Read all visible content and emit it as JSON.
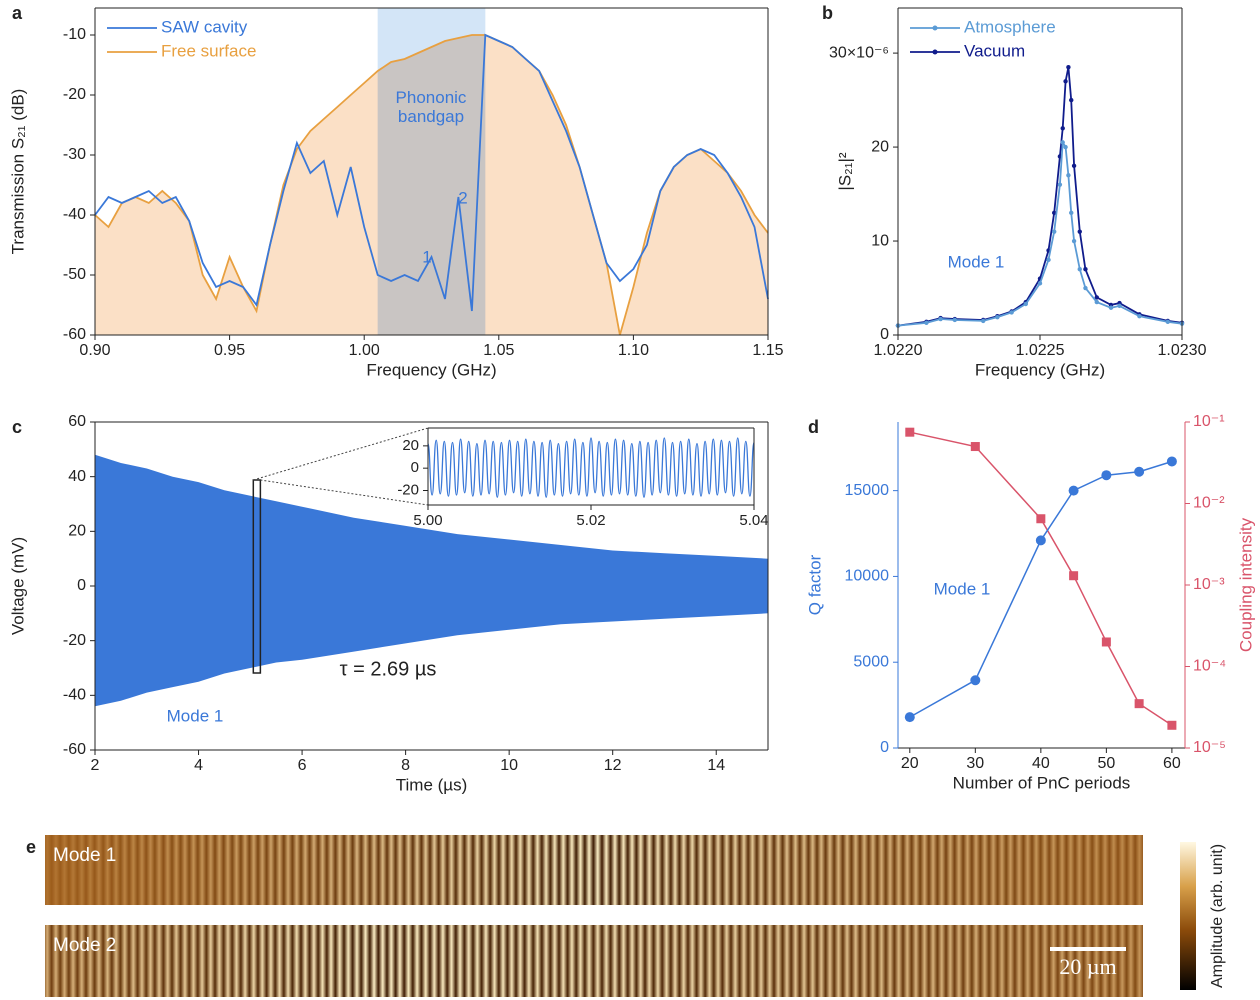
{
  "chart_data": [
    {
      "type": "line",
      "panel": "a",
      "x_label": "Frequency (GHz)",
      "y_label": "Transmission S₂₁ (dB)",
      "x": [
        0.9,
        0.905,
        0.91,
        0.915,
        0.92,
        0.925,
        0.93,
        0.935,
        0.94,
        0.945,
        0.95,
        0.955,
        0.96,
        0.965,
        0.97,
        0.975,
        0.98,
        0.985,
        0.99,
        0.995,
        1.0,
        1.005,
        1.01,
        1.015,
        1.02,
        1.025,
        1.03,
        1.035,
        1.04,
        1.045,
        1.05,
        1.055,
        1.06,
        1.065,
        1.07,
        1.075,
        1.08,
        1.085,
        1.09,
        1.095,
        1.1,
        1.105,
        1.11,
        1.115,
        1.12,
        1.125,
        1.13,
        1.135,
        1.14,
        1.145,
        1.15
      ],
      "series": [
        {
          "name": "SAW cavity",
          "color": "#3a78d8",
          "values": [
            -40,
            -37,
            -38,
            -37,
            -36,
            -38,
            -37,
            -41,
            -48,
            -52,
            -51,
            -52,
            -55,
            -45,
            -36,
            -28,
            -33,
            -31,
            -40,
            -32,
            -42,
            -50,
            -51,
            -50,
            -51,
            -47,
            -54,
            -37,
            -56,
            -10,
            -11,
            -12,
            -14,
            -16,
            -21,
            -26,
            -32,
            -40,
            -48,
            -51,
            -49,
            -45,
            -36,
            -32,
            -30,
            -29,
            -30,
            -33,
            -37,
            -42,
            -54
          ]
        },
        {
          "name": "Free surface",
          "color": "#e8a040",
          "fill": "#fbe0c6",
          "values": [
            -40,
            -42,
            -38,
            -37,
            -38,
            -36,
            -38,
            -41,
            -50,
            -54,
            -47,
            -52,
            -56,
            -45,
            -35,
            -29,
            -26,
            -24,
            -22,
            -20,
            -18,
            -16,
            -14.5,
            -14,
            -13,
            -12,
            -11,
            -10.5,
            -10,
            -10,
            -11,
            -12,
            -14,
            -16,
            -20,
            -25,
            -32,
            -40,
            -48,
            -60,
            -52,
            -43,
            -36,
            -32,
            -30,
            -29,
            -31,
            -33,
            -36,
            -40,
            -43
          ]
        }
      ],
      "bandgap": [
        1.005,
        1.045
      ],
      "annotations": [
        "Phononic bandgap",
        "1",
        "2"
      ],
      "xlim": [
        0.9,
        1.15
      ],
      "ylim": [
        -60,
        -5.5
      ],
      "xticks": [
        {
          "value": 0.9,
          "label": "0.90"
        },
        {
          "value": 0.95,
          "label": "0.95"
        },
        {
          "value": 1,
          "label": "1.00"
        },
        {
          "value": 1.05,
          "label": "1.05"
        },
        {
          "value": 1.1,
          "label": "1.10"
        },
        {
          "value": 1.15,
          "label": "1.15"
        }
      ],
      "yticks": [
        -60,
        -50,
        -40,
        -30,
        -20,
        -10
      ],
      "legend": "upper left",
      "box": true
    },
    {
      "type": "line",
      "panel": "b",
      "x_label": "Frequency (GHz)",
      "y_label": "|S₂₁|²",
      "x": [
        1.022,
        1.0221,
        1.02215,
        1.0222,
        1.0223,
        1.02235,
        1.0224,
        1.02245,
        1.0225,
        1.02253,
        1.02255,
        1.02257,
        1.02258,
        1.02259,
        1.0226,
        1.02261,
        1.02262,
        1.02264,
        1.02266,
        1.0227,
        1.02275,
        1.02278,
        1.02285,
        1.02295,
        1.023
      ],
      "series": [
        {
          "name": "Atmosphere",
          "color": "#5b9bd5",
          "marker": "circle",
          "values": [
            1.0,
            1.3,
            1.7,
            1.6,
            1.5,
            1.9,
            2.4,
            3.3,
            5.5,
            8,
            11,
            16,
            20.5,
            20,
            17,
            13,
            10,
            7,
            5,
            3.5,
            2.9,
            3.1,
            2.0,
            1.4,
            1.2
          ]
        },
        {
          "name": "Vacuum",
          "color": "#101c8c",
          "marker": "circle",
          "values": [
            1.0,
            1.4,
            1.8,
            1.7,
            1.6,
            2.0,
            2.5,
            3.5,
            6,
            9,
            13,
            19,
            22,
            27,
            28.5,
            25,
            18,
            11,
            7,
            4,
            3.2,
            3.4,
            2.2,
            1.5,
            1.3
          ]
        }
      ],
      "annotations": [
        "Mode 1"
      ],
      "xlim": [
        1.022,
        1.023
      ],
      "ylim": [
        0,
        34.8
      ],
      "xticks": [
        {
          "value": 1.022,
          "label": "1.0220"
        },
        1.0225,
        {
          "value": 1.023,
          "label": "1.0230"
        }
      ],
      "yticks": [
        0,
        10,
        20,
        {
          "value": 30,
          "label": "30×10⁻⁶"
        }
      ],
      "legend": "upper left",
      "box": true
    },
    {
      "type": "area",
      "panel": "c",
      "x_label": "Time (µs)",
      "y_label": "Voltage (mV)",
      "color": "#3a78d8",
      "x": [
        2,
        2.5,
        3,
        3.5,
        4,
        4.5,
        5,
        5.5,
        6,
        7,
        8,
        9,
        10,
        11,
        12,
        13,
        14,
        15
      ],
      "upper": [
        48,
        45,
        43,
        40,
        38,
        35,
        33,
        31,
        29,
        25,
        22,
        19,
        17,
        15,
        13,
        12,
        11,
        10
      ],
      "lower": [
        -44,
        -42,
        -39,
        -37,
        -35,
        -32,
        -30,
        -28,
        -27,
        -24,
        -21,
        -18,
        -16,
        -14,
        -13,
        -12,
        -11,
        -10
      ],
      "annotations": [
        "τ = 2.69 µs",
        "Mode 1"
      ],
      "xlim": [
        2,
        15
      ],
      "ylim": [
        -60,
        60
      ],
      "xticks": [
        2,
        4,
        6,
        8,
        10,
        12,
        14
      ],
      "yticks": [
        -60,
        -40,
        -20,
        0,
        20,
        40,
        60
      ],
      "box": true,
      "inset": {
        "type": "line",
        "color": "#3a78d8",
        "x": [
          5,
          5.0005,
          5.001,
          5.0015,
          5.002,
          5.0025,
          5.003,
          5.0035,
          5.004,
          5.0045,
          5.005,
          5.0055,
          5.006,
          5.0065,
          5.007,
          5.0075,
          5.008,
          5.0085,
          5.009,
          5.0095,
          5.01,
          5.0105,
          5.011,
          5.0115,
          5.012,
          5.0125,
          5.013,
          5.0135,
          5.014,
          5.0145,
          5.015,
          5.0155,
          5.016,
          5.0165,
          5.017,
          5.0175,
          5.018,
          5.0185,
          5.019,
          5.0195,
          5.02,
          5.0205,
          5.021,
          5.0215,
          5.022,
          5.0225,
          5.023,
          5.0235,
          5.024,
          5.0245,
          5.025,
          5.0255,
          5.026,
          5.0265,
          5.027,
          5.0275,
          5.028,
          5.0285,
          5.029,
          5.0295,
          5.03,
          5.0305,
          5.031,
          5.0315,
          5.032,
          5.0325,
          5.033,
          5.0335,
          5.034,
          5.0345,
          5.035,
          5.0355,
          5.036,
          5.0365,
          5.037,
          5.0375,
          5.038,
          5.0385,
          5.039,
          5.0395,
          5.04
        ],
        "values": [
          22,
          -24,
          25,
          -23,
          24,
          -25,
          23,
          -24,
          26,
          -22,
          24,
          -25,
          22,
          -24,
          25,
          -23,
          24,
          -26,
          23,
          -24,
          25,
          -22,
          24,
          -25,
          26,
          -23,
          24,
          -25,
          23,
          -26,
          25,
          -24,
          22,
          -25,
          24,
          -23,
          26,
          -24,
          23,
          -25,
          27,
          -22,
          24,
          -25,
          23,
          -24,
          26,
          -23,
          25,
          -24,
          22,
          -25,
          24,
          -26,
          23,
          -24,
          25,
          -22,
          27,
          -24,
          23,
          -25,
          24,
          -23,
          26,
          -24,
          22,
          -25,
          24,
          -23,
          26,
          -24,
          25,
          -22,
          24,
          -25,
          27,
          -23,
          24,
          -25,
          23
        ],
        "xlim": [
          5,
          5.04
        ],
        "ylim": [
          -33,
          36
        ],
        "xticks": [
          {
            "value": 5,
            "label": "5.00"
          },
          {
            "value": 5.02,
            "label": "5.02"
          },
          {
            "value": 5.04,
            "label": "5.04"
          }
        ],
        "yticks": [
          -20,
          0,
          20
        ]
      }
    },
    {
      "type": "line",
      "panel": "d",
      "x_label": "Number of PnC periods",
      "y_label": "Q factor",
      "y2_label": "Coupling intensity",
      "x": [
        20,
        30,
        40,
        45,
        50,
        55,
        60
      ],
      "series": [
        {
          "color": "#3a78d8",
          "marker": "circle",
          "values": [
            1800,
            3950,
            12100,
            15000,
            15900,
            16100,
            16700
          ]
        },
        {
          "color": "#d9546a",
          "marker": "square",
          "axis": "y2",
          "values": [
            0.075,
            0.05,
            0.0065,
            0.0013,
            0.0002,
            3.5e-05,
            1.9e-05
          ]
        }
      ],
      "annotations": [
        "Mode 1"
      ],
      "xlim": [
        18.2,
        62
      ],
      "ylim": [
        0,
        19000
      ],
      "y2lim": [
        1e-05,
        0.1
      ],
      "y2log": true,
      "xticks": [
        20,
        30,
        40,
        50,
        60
      ],
      "yticks": [
        0,
        5000,
        10000,
        15000
      ],
      "y2ticks": [
        {
          "value": 1e-05,
          "label": "10⁻⁵"
        },
        {
          "value": 0.0001,
          "label": "10⁻⁴"
        },
        {
          "value": 0.001,
          "label": "10⁻³"
        },
        {
          "value": 0.01,
          "label": "10⁻²"
        },
        {
          "value": 0.1,
          "label": "10⁻¹"
        }
      ],
      "ycolor": "#3a78d8",
      "y2color": "#d9546a",
      "box": false
    }
  ],
  "panel_e": {
    "panel": "e",
    "images": [
      "Mode 1",
      "Mode 2"
    ],
    "scale_bar": "20 µm",
    "colorbar_label": "Amplitude (arb. unit)"
  }
}
